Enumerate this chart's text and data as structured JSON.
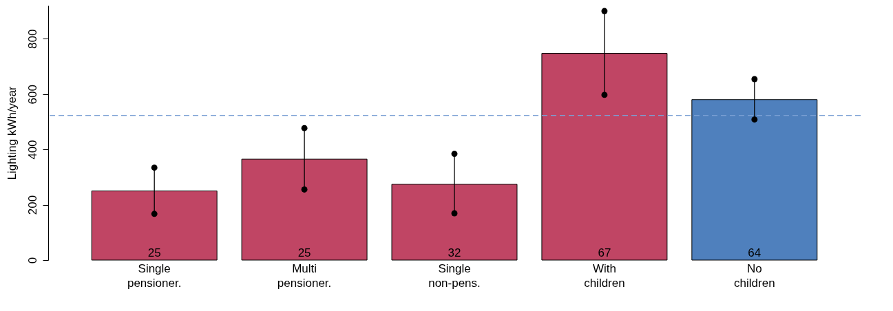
{
  "chart_data": {
    "type": "bar",
    "ylabel": "Lighting kWh/year",
    "categories": [
      "Single pensioner.",
      "Multi pensioner.",
      "Single non-pens.",
      "With children",
      "No children"
    ],
    "series": [
      {
        "values": [
          250,
          365,
          274,
          747,
          580
        ],
        "colors": [
          "#c04564",
          "#c04564",
          "#c04564",
          "#c04564",
          "#4f80bd"
        ]
      },
      {
        "type": "line",
        "color": "#000000",
        "x": [
          "Single pensioner.",
          "Single pensioner."
        ],
        "values": [
          167,
          334
        ]
      },
      {
        "type": "line",
        "color": "#000000",
        "x": [
          "Multi pensioner.",
          "Multi pensioner."
        ],
        "values": [
          255,
          477
        ]
      },
      {
        "type": "line",
        "color": "#000000",
        "x": [
          "Single non-pens.",
          "Single non-pens."
        ],
        "values": [
          169,
          384
        ]
      },
      {
        "type": "line",
        "color": "#000000",
        "x": [
          "With children",
          "With children"
        ],
        "values": [
          597,
          900
        ]
      },
      {
        "type": "line",
        "color": "#000000",
        "x": [
          "No children",
          "No children"
        ],
        "values": [
          508,
          654
        ]
      }
    ],
    "marker": "circle",
    "ylim": [
      0,
      920
    ],
    "yticks": [
      0,
      200,
      400,
      600,
      800
    ],
    "ref_lines": [
      {
        "axis": "y",
        "value": 523,
        "color": "#7a9fd4",
        "line_style": "dashed"
      }
    ],
    "annotations": [
      {
        "text": "25",
        "x": "Single pensioner.",
        "y": 0
      },
      {
        "text": "25",
        "x": "Multi pensioner.",
        "y": 0
      },
      {
        "text": "32",
        "x": "Single non-pens.",
        "y": 0
      },
      {
        "text": "67",
        "x": "With children",
        "y": 0
      },
      {
        "text": "64",
        "x": "No children",
        "y": 0
      }
    ]
  }
}
